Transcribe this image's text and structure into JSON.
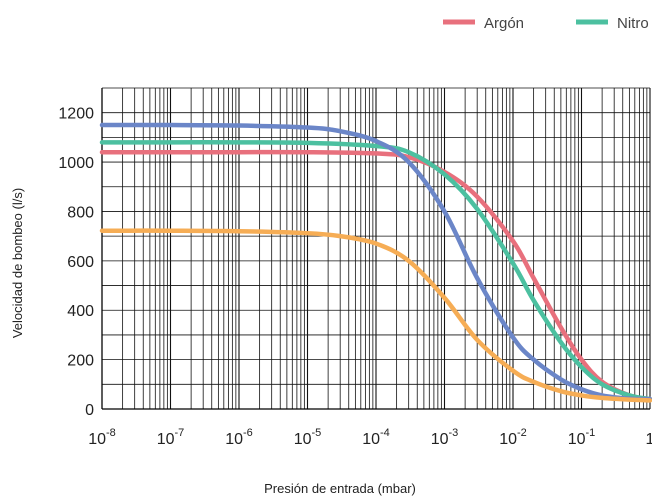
{
  "chart_data": {
    "type": "line",
    "title": "",
    "xlabel": "Presión de entrada (mbar)",
    "ylabel": "Velocidad de bombeo (l/s)",
    "xscale": "log",
    "xlim": [
      1e-08,
      1
    ],
    "ylim": [
      0,
      1300
    ],
    "grid": true,
    "legend_position": "top-right",
    "x_tick_labels": [
      {
        "base": "10",
        "exp": "-8"
      },
      {
        "base": "10",
        "exp": "-7"
      },
      {
        "base": "10",
        "exp": "-6"
      },
      {
        "base": "10",
        "exp": "-5"
      },
      {
        "base": "10",
        "exp": "-4"
      },
      {
        "base": "10",
        "exp": "-3"
      },
      {
        "base": "10",
        "exp": "-2"
      },
      {
        "base": "10",
        "exp": "-1"
      },
      {
        "base": "1",
        "exp": ""
      }
    ],
    "y_ticks": [
      "0",
      "200",
      "400",
      "600",
      "800",
      "1000",
      "1200"
    ],
    "series": [
      {
        "name": "Argón",
        "color": "#e8707d",
        "legend": true,
        "x": [
          1e-08,
          1e-07,
          1e-06,
          1e-05,
          0.0001,
          0.0003,
          0.001,
          0.003,
          0.01,
          0.02,
          0.05,
          0.1,
          0.2,
          0.5,
          1
        ],
        "y": [
          1040,
          1040,
          1040,
          1040,
          1035,
          1020,
          960,
          860,
          680,
          530,
          330,
          200,
          110,
          55,
          40
        ]
      },
      {
        "name": "Nitro",
        "color": "#4cc0a0",
        "legend": true,
        "x": [
          1e-08,
          1e-07,
          1e-06,
          1e-05,
          0.0001,
          0.0003,
          0.001,
          0.003,
          0.01,
          0.02,
          0.05,
          0.1,
          0.2,
          0.5,
          1
        ],
        "y": [
          1080,
          1080,
          1080,
          1078,
          1065,
          1040,
          950,
          810,
          590,
          440,
          270,
          170,
          100,
          55,
          40
        ]
      },
      {
        "name": "",
        "color": "#6b86c8",
        "legend": false,
        "x": [
          1e-08,
          1e-07,
          1e-06,
          1e-05,
          3e-05,
          0.0001,
          0.0003,
          0.001,
          0.003,
          0.01,
          0.02,
          0.05,
          0.1,
          0.2,
          0.5,
          1
        ],
        "y": [
          1150,
          1150,
          1148,
          1140,
          1125,
          1085,
          1000,
          800,
          530,
          290,
          200,
          120,
          80,
          55,
          42,
          40
        ]
      },
      {
        "name": "",
        "color": "#f6ad55",
        "legend": false,
        "x": [
          1e-08,
          1e-07,
          1e-06,
          1e-05,
          3e-05,
          0.0001,
          0.0003,
          0.001,
          0.003,
          0.01,
          0.02,
          0.05,
          0.1,
          0.2,
          0.5,
          1
        ],
        "y": [
          722,
          722,
          720,
          712,
          700,
          670,
          600,
          450,
          280,
          155,
          110,
          72,
          55,
          45,
          38,
          35
        ]
      }
    ]
  }
}
